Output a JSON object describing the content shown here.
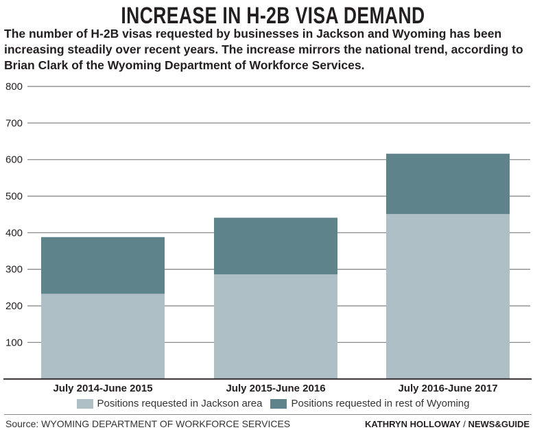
{
  "chart_data": {
    "type": "bar",
    "stacked": true,
    "title": "INCREASE IN H-2B VISA DEMAND",
    "subtitle": "The number of H-2B visas requested by businesses in Jackson and Wyoming has been increasing steadily over recent years. The increase mirrors the national trend, according to Brian Clark of the Wyoming Department of Workforce Services.",
    "categories": [
      "July 2014-June 2015",
      "July 2015-June 2016",
      "July 2016-June 2017"
    ],
    "series": [
      {
        "name": "Positions requested in Jackson area",
        "values": [
          233,
          286,
          451
        ],
        "color": "#aebfc6"
      },
      {
        "name": "Positions requested in rest of Wyoming",
        "values": [
          155,
          155,
          165
        ],
        "color": "#5e838b"
      }
    ],
    "ylim": [
      0,
      800
    ],
    "yticks": [
      "100",
      "200",
      "300",
      "400",
      "500",
      "600",
      "700",
      "800"
    ],
    "grid": true,
    "legend": "bottom",
    "xlabel": "",
    "ylabel": ""
  },
  "footer": {
    "source": "Source: WYOMING DEPARTMENT OF WORKFORCE SERVICES",
    "credit_name": "KATHRYN HOLLOWAY",
    "credit_sep": " / ",
    "credit_org": "NEWS&GUIDE"
  }
}
